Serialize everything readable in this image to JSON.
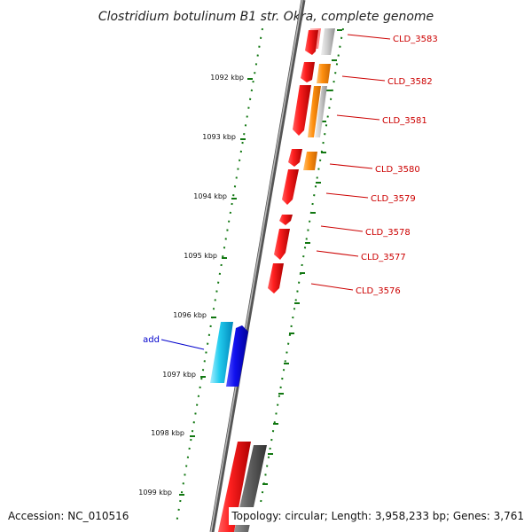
{
  "title": "Clostridium botulinum B1 str. Okra, complete genome",
  "footer": {
    "accession": "Accession: NC_010516",
    "topology": "Topology: circular; Length: 3,958,233 bp; Genes: 3,761"
  },
  "ticks": [
    "1092 kbp",
    "1093 kbp",
    "1094 kbp",
    "1095 kbp",
    "1096 kbp",
    "1097 kbp",
    "1098 kbp",
    "1099 kbp"
  ],
  "gene_labels": [
    "CLD_3583",
    "CLD_3582",
    "CLD_3581",
    "CLD_3580",
    "CLD_3579",
    "CLD_3578",
    "CLD_3577",
    "CLD_3576"
  ],
  "feature_labels": [
    "add"
  ],
  "colors": {
    "backbone": "#808080",
    "cds_forward": "#e00000",
    "cds_light": "#ff9999",
    "orange": "#ff8800",
    "gray": "#aaaaaa",
    "dark_gray": "#555555",
    "cyan": "#00aadd",
    "blue": "#0000ee",
    "dots": "#117711"
  }
}
